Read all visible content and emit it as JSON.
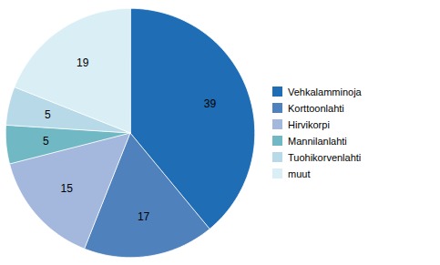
{
  "chart_data": {
    "type": "pie",
    "categories": [
      "Vehkalamminoja",
      "Korttoonlahti",
      "Hirvikorpi",
      "Mannilanlahti",
      "Tuohikorvenlahti",
      "muut"
    ],
    "values": [
      39,
      17,
      15,
      5,
      5,
      19
    ],
    "colors": [
      "#1F6DB5",
      "#4F81BD",
      "#A3B8DC",
      "#70B8C4",
      "#B8D9E8",
      "#D9EEF5"
    ],
    "data_labels": true,
    "legend": "right",
    "tick_labels": false
  }
}
